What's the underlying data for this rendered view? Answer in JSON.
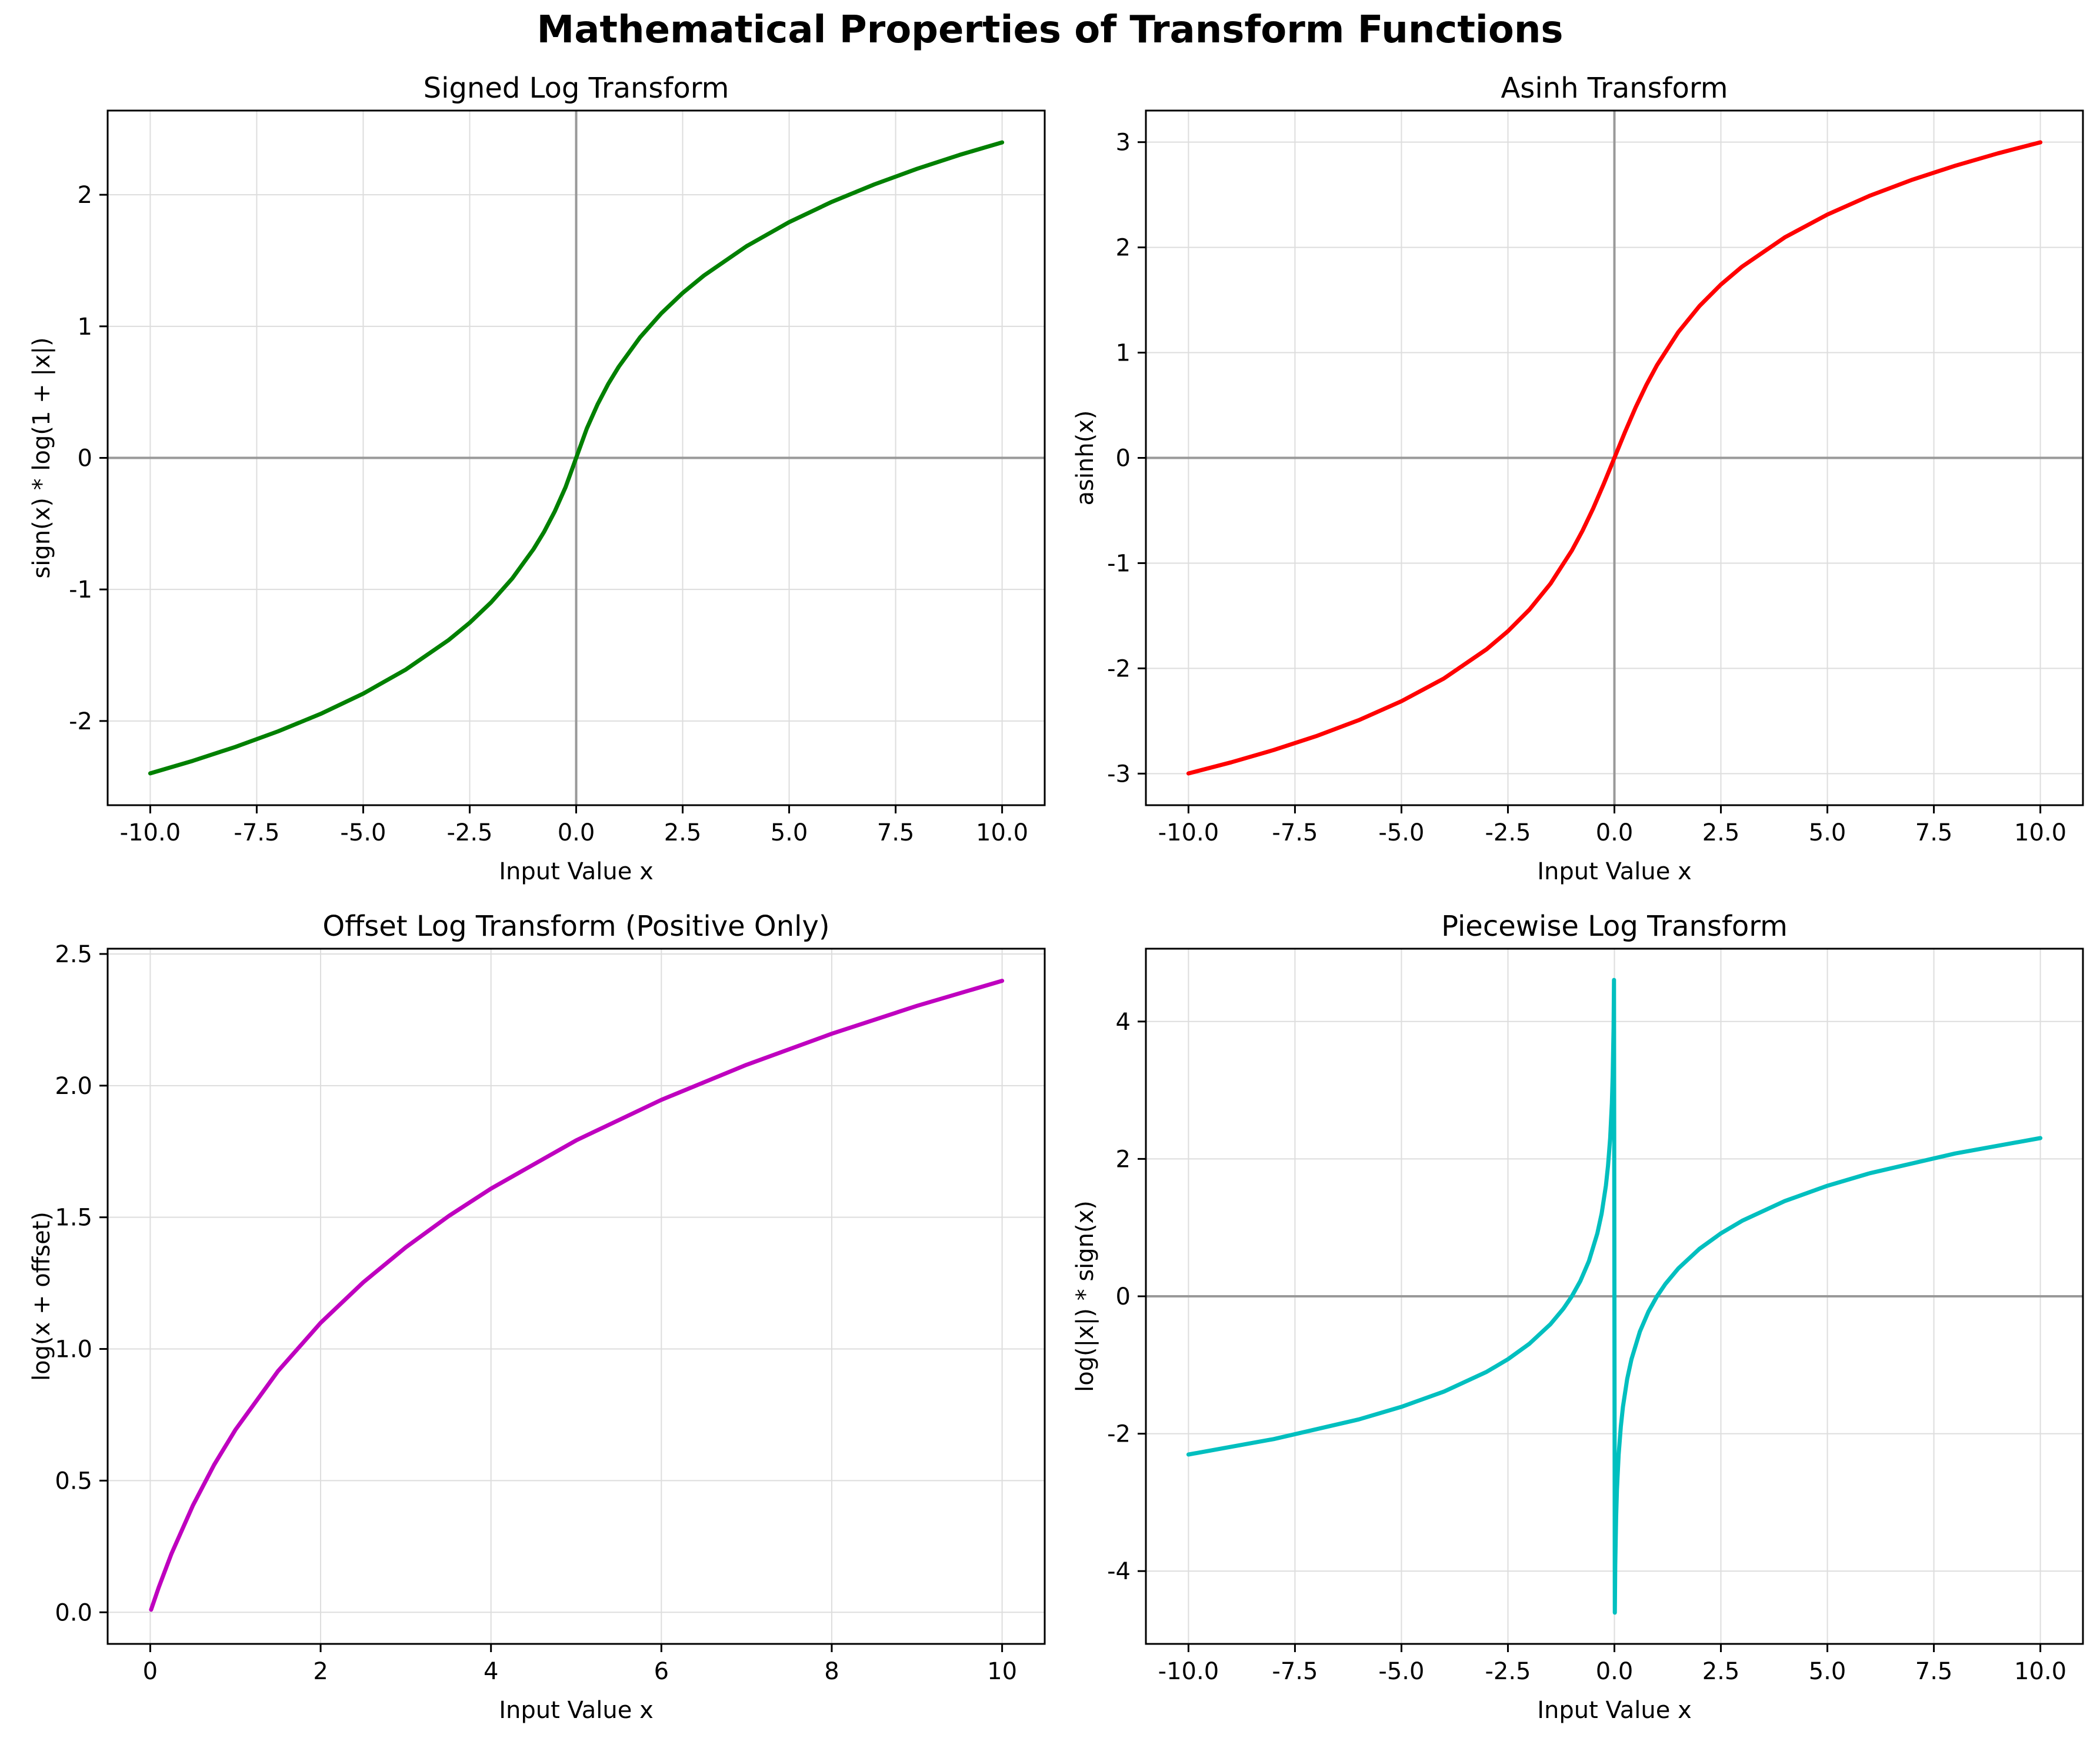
{
  "figure": {
    "title": "Mathematical Properties of Transform Functions"
  },
  "chart_data": [
    {
      "type": "line",
      "title": "Signed Log Transform",
      "xlabel": "Input Value x",
      "ylabel": "sign(x) * log(1 + |x|)",
      "color": "#008000",
      "xlim": [
        -11.0,
        11.0
      ],
      "ylim": [
        -2.64,
        2.64
      ],
      "x_ticks": [
        -10.0,
        -7.5,
        -5.0,
        -2.5,
        0.0,
        2.5,
        5.0,
        7.5,
        10.0
      ],
      "x_tick_labels": [
        "-10.0",
        "-7.5",
        "-5.0",
        "-2.5",
        "0.0",
        "2.5",
        "5.0",
        "7.5",
        "10.0"
      ],
      "y_ticks": [
        -2,
        -1,
        0,
        1,
        2
      ],
      "y_tick_labels": [
        "-2",
        "-1",
        "0",
        "1",
        "2"
      ],
      "grid": true,
      "reference_lines": {
        "x": 0,
        "y": 0
      },
      "series": [
        {
          "x": [
            -10.0,
            -9.0,
            -8.0,
            -7.0,
            -6.0,
            -5.0,
            -4.0,
            -3.0,
            -2.5,
            -2.0,
            -1.5,
            -1.0,
            -0.75,
            -0.5,
            -0.25,
            0.0,
            0.25,
            0.5,
            0.75,
            1.0,
            1.5,
            2.0,
            2.5,
            3.0,
            4.0,
            5.0,
            6.0,
            7.0,
            8.0,
            9.0,
            10.0
          ],
          "y": [
            -2.398,
            -2.303,
            -2.197,
            -2.079,
            -1.946,
            -1.792,
            -1.609,
            -1.386,
            -1.253,
            -1.099,
            -0.916,
            -0.693,
            -0.56,
            -0.405,
            -0.223,
            0.0,
            0.223,
            0.405,
            0.56,
            0.693,
            0.916,
            1.099,
            1.253,
            1.386,
            1.609,
            1.792,
            1.946,
            2.079,
            2.197,
            2.303,
            2.398
          ]
        }
      ]
    },
    {
      "type": "line",
      "title": "Asinh Transform",
      "xlabel": "Input Value x",
      "ylabel": "asinh(x)",
      "color": "#ff0000",
      "xlim": [
        -11.0,
        11.0
      ],
      "ylim": [
        -3.3,
        3.3
      ],
      "x_ticks": [
        -10.0,
        -7.5,
        -5.0,
        -2.5,
        0.0,
        2.5,
        5.0,
        7.5,
        10.0
      ],
      "x_tick_labels": [
        "-10.0",
        "-7.5",
        "-5.0",
        "-2.5",
        "0.0",
        "2.5",
        "5.0",
        "7.5",
        "10.0"
      ],
      "y_ticks": [
        -3,
        -2,
        -1,
        0,
        1,
        2,
        3
      ],
      "y_tick_labels": [
        "-3",
        "-2",
        "-1",
        "0",
        "1",
        "2",
        "3"
      ],
      "grid": true,
      "reference_lines": {
        "x": 0,
        "y": 0
      },
      "series": [
        {
          "x": [
            -10.0,
            -9.0,
            -8.0,
            -7.0,
            -6.0,
            -5.0,
            -4.0,
            -3.0,
            -2.5,
            -2.0,
            -1.5,
            -1.0,
            -0.75,
            -0.5,
            -0.25,
            0.0,
            0.25,
            0.5,
            0.75,
            1.0,
            1.5,
            2.0,
            2.5,
            3.0,
            4.0,
            5.0,
            6.0,
            7.0,
            8.0,
            9.0,
            10.0
          ],
          "y": [
            -2.998,
            -2.893,
            -2.776,
            -2.644,
            -2.492,
            -2.312,
            -2.095,
            -1.818,
            -1.647,
            -1.444,
            -1.195,
            -0.881,
            -0.693,
            -0.481,
            -0.247,
            0.0,
            0.247,
            0.481,
            0.693,
            0.881,
            1.195,
            1.444,
            1.647,
            1.818,
            2.095,
            2.312,
            2.492,
            2.644,
            2.776,
            2.893,
            2.998
          ]
        }
      ]
    },
    {
      "type": "line",
      "title": "Offset Log Transform (Positive Only)",
      "xlabel": "Input Value x",
      "ylabel": "log(x + offset)",
      "color": "#bf00bf",
      "xlim": [
        -0.5,
        10.5
      ],
      "ylim": [
        -0.12,
        2.52
      ],
      "x_ticks": [
        0,
        2,
        4,
        6,
        8,
        10
      ],
      "x_tick_labels": [
        "0",
        "2",
        "4",
        "6",
        "8",
        "10"
      ],
      "y_ticks": [
        0.0,
        0.5,
        1.0,
        1.5,
        2.0,
        2.5
      ],
      "y_tick_labels": [
        "0.0",
        "0.5",
        "1.0",
        "1.5",
        "2.0",
        "2.5"
      ],
      "grid": true,
      "series": [
        {
          "x": [
            0.01,
            0.1,
            0.25,
            0.5,
            0.75,
            1.0,
            1.5,
            2.0,
            2.5,
            3.0,
            3.5,
            4.0,
            5.0,
            6.0,
            7.0,
            8.0,
            9.0,
            10.0
          ],
          "y": [
            0.01,
            0.095,
            0.223,
            0.405,
            0.56,
            0.693,
            0.916,
            1.099,
            1.253,
            1.386,
            1.504,
            1.609,
            1.792,
            1.946,
            2.079,
            2.197,
            2.303,
            2.398
          ]
        }
      ]
    },
    {
      "type": "line",
      "title": "Piecewise Log Transform",
      "xlabel": "Input Value x",
      "ylabel": "log(|x|) * sign(x)",
      "color": "#00bfbf",
      "xlim": [
        -11.0,
        11.0
      ],
      "ylim": [
        -5.06,
        5.06
      ],
      "x_ticks": [
        -10.0,
        -7.5,
        -5.0,
        -2.5,
        0.0,
        2.5,
        5.0,
        7.5,
        10.0
      ],
      "x_tick_labels": [
        "-10.0",
        "-7.5",
        "-5.0",
        "-2.5",
        "0.0",
        "2.5",
        "5.0",
        "7.5",
        "10.0"
      ],
      "y_ticks": [
        -4,
        -2,
        0,
        2,
        4
      ],
      "y_tick_labels": [
        "-4",
        "-2",
        "0",
        "2",
        "4"
      ],
      "grid": true,
      "reference_lines": {
        "y": 0
      },
      "series": [
        {
          "x": [
            -10.0,
            -8.0,
            -6.0,
            -5.0,
            -4.0,
            -3.0,
            -2.5,
            -2.0,
            -1.5,
            -1.2,
            -1.0,
            -0.8,
            -0.6,
            -0.4,
            -0.3,
            -0.2,
            -0.15,
            -0.1,
            -0.06,
            -0.04,
            -0.02,
            -0.01,
            0.01,
            0.02,
            0.04,
            0.06,
            0.1,
            0.15,
            0.2,
            0.3,
            0.4,
            0.6,
            0.8,
            1.0,
            1.2,
            1.5,
            2.0,
            2.5,
            3.0,
            4.0,
            5.0,
            6.0,
            8.0,
            10.0
          ],
          "y": [
            -2.303,
            -2.079,
            -1.792,
            -1.609,
            -1.386,
            -1.099,
            -0.916,
            -0.693,
            -0.405,
            -0.182,
            0.0,
            0.223,
            0.511,
            0.916,
            1.204,
            1.609,
            1.897,
            2.303,
            2.813,
            3.219,
            3.912,
            4.605,
            -4.605,
            -3.912,
            -3.219,
            -2.813,
            -2.303,
            -1.897,
            -1.609,
            -1.204,
            -0.916,
            -0.511,
            -0.223,
            0.0,
            0.182,
            0.405,
            0.693,
            0.916,
            1.099,
            1.386,
            1.609,
            1.792,
            2.079,
            2.303
          ]
        }
      ]
    }
  ]
}
